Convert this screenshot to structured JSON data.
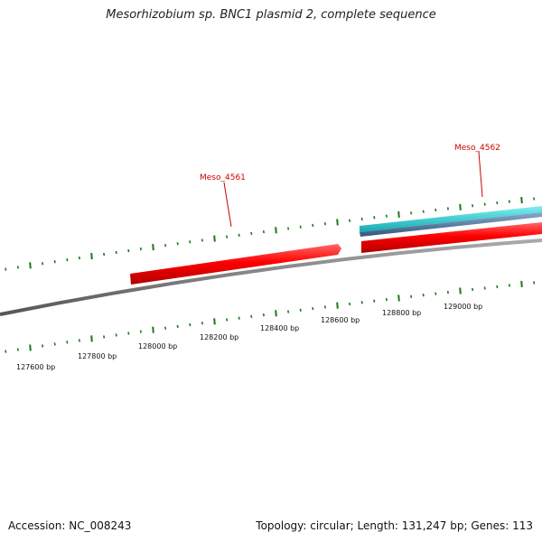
{
  "title": "Mesorhizobium sp. BNC1 plasmid 2, complete sequence",
  "footer": {
    "accession": "Accession: NC_008243",
    "topology": "Topology: circular; Length: 131,247 bp; Genes: 113"
  },
  "ticks": [
    "127600 bp",
    "127800 bp",
    "128000 bp",
    "128200 bp",
    "128400 bp",
    "128600 bp",
    "128800 bp",
    "129000 bp"
  ],
  "genes": [
    {
      "label": "Meso_4561",
      "color": "#ff0000"
    },
    {
      "label": "Meso_4562",
      "color": "#ff0000"
    }
  ],
  "colors": {
    "backbone": "#777777",
    "tick": "#1a7a1a",
    "gene_red": "#ff0000",
    "gene_cyan": "#22cccc",
    "gene_blue": "#4477aa"
  }
}
